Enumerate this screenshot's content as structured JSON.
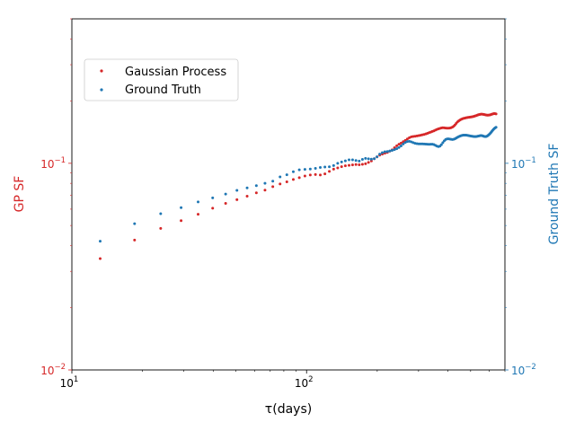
{
  "chart_data": {
    "type": "scatter",
    "xscale": "log",
    "yscale": "log",
    "xlabel": "τ(days)",
    "ylabel_left": "GP SF",
    "ylabel_right": "Ground Truth SF",
    "xlim": [
      10,
      700
    ],
    "ylim_left": [
      0.01,
      0.5
    ],
    "ylim_right": [
      0.01,
      0.5
    ],
    "x_ticks": [
      {
        "value": 10,
        "label_base": "10",
        "label_exp": "1"
      },
      {
        "value": 100,
        "label_base": "10",
        "label_exp": "2"
      }
    ],
    "y_ticks_left": [
      {
        "value": 0.01,
        "label_base": "10",
        "label_exp": "−2"
      },
      {
        "value": 0.1,
        "label_base": "10",
        "label_exp": "−1"
      }
    ],
    "y_ticks_right": [
      {
        "value": 0.01,
        "label_base": "10",
        "label_exp": "−2"
      },
      {
        "value": 0.1,
        "label_base": "10",
        "label_exp": "−1"
      }
    ],
    "colors": {
      "gp": "#d62728",
      "truth": "#1f77b4",
      "axis": "#000000"
    },
    "legend": {
      "placement": "upper-left",
      "entries": [
        {
          "name": "Gaussian Process",
          "color": "#d62728"
        },
        {
          "name": "Ground Truth",
          "color": "#1f77b4"
        }
      ]
    },
    "series": [
      {
        "name": "Gaussian Process",
        "axis": "left",
        "color": "#d62728",
        "points": [
          [
            13.2,
            0.0346
          ],
          [
            18.5,
            0.0425
          ],
          [
            23.9,
            0.0484
          ],
          [
            29.2,
            0.0528
          ],
          [
            34.5,
            0.0567
          ],
          [
            39.8,
            0.0606
          ],
          [
            45.2,
            0.064
          ],
          [
            50.5,
            0.0667
          ],
          [
            55.8,
            0.0693
          ],
          [
            61.1,
            0.072
          ],
          [
            66.5,
            0.0742
          ],
          [
            71.8,
            0.0771
          ],
          [
            77.1,
            0.0794
          ],
          [
            82.4,
            0.0813
          ],
          [
            87.8,
            0.0835
          ],
          [
            93.1,
            0.0852
          ],
          [
            98.4,
            0.0868
          ],
          [
            103.7,
            0.0878
          ],
          [
            109.1,
            0.0882
          ],
          [
            114.4,
            0.0878
          ],
          [
            119.7,
            0.0889
          ],
          [
            125.0,
            0.0914
          ],
          [
            130.4,
            0.0937
          ],
          [
            135.7,
            0.095
          ],
          [
            141.0,
            0.0963
          ],
          [
            146.3,
            0.0973
          ],
          [
            151.7,
            0.0978
          ],
          [
            157.0,
            0.0983
          ],
          [
            162.3,
            0.0986
          ],
          [
            167.6,
            0.0984
          ],
          [
            173.0,
            0.0989
          ],
          [
            178.3,
            0.0995
          ],
          [
            183.6,
            0.101
          ],
          [
            188.9,
            0.1027
          ],
          [
            194.3,
            0.1052
          ],
          [
            199.6,
            0.1074
          ],
          [
            204.9,
            0.1095
          ],
          [
            210.2,
            0.1108
          ],
          [
            215.6,
            0.1119
          ],
          [
            220.9,
            0.1129
          ],
          [
            226.2,
            0.1145
          ],
          [
            231.5,
            0.1162
          ],
          [
            236.9,
            0.1189
          ],
          [
            242.2,
            0.1215
          ],
          [
            247.5,
            0.1236
          ],
          [
            252.8,
            0.1253
          ],
          [
            258.2,
            0.1273
          ],
          [
            263.5,
            0.1291
          ],
          [
            268.8,
            0.1311
          ],
          [
            274.1,
            0.133
          ],
          [
            279.5,
            0.1343
          ],
          [
            284.8,
            0.1348
          ],
          [
            290.1,
            0.1351
          ],
          [
            295.4,
            0.1356
          ],
          [
            300.8,
            0.1362
          ],
          [
            306.1,
            0.1367
          ],
          [
            311.4,
            0.1373
          ],
          [
            316.7,
            0.1379
          ],
          [
            322.1,
            0.1387
          ],
          [
            327.4,
            0.1396
          ],
          [
            332.7,
            0.1406
          ],
          [
            338.0,
            0.1416
          ],
          [
            343.4,
            0.1426
          ],
          [
            348.7,
            0.1436
          ],
          [
            354.0,
            0.1447
          ],
          [
            359.3,
            0.1458
          ],
          [
            364.7,
            0.1468
          ],
          [
            370.0,
            0.1476
          ],
          [
            375.3,
            0.1482
          ],
          [
            380.6,
            0.1486
          ],
          [
            386.0,
            0.1484
          ],
          [
            391.3,
            0.1481
          ],
          [
            396.6,
            0.1479
          ],
          [
            401.9,
            0.1478
          ],
          [
            407.3,
            0.1481
          ],
          [
            412.6,
            0.1487
          ],
          [
            417.9,
            0.1495
          ],
          [
            423.2,
            0.151
          ],
          [
            428.6,
            0.1532
          ],
          [
            433.9,
            0.1558
          ],
          [
            439.2,
            0.1584
          ],
          [
            444.5,
            0.1603
          ],
          [
            449.9,
            0.1618
          ],
          [
            455.2,
            0.163
          ],
          [
            460.5,
            0.164
          ],
          [
            465.8,
            0.1648
          ],
          [
            471.2,
            0.1654
          ],
          [
            476.5,
            0.1659
          ],
          [
            481.8,
            0.1664
          ],
          [
            487.1,
            0.1667
          ],
          [
            492.5,
            0.167
          ],
          [
            497.8,
            0.1673
          ],
          [
            503.1,
            0.1676
          ],
          [
            508.4,
            0.168
          ],
          [
            513.8,
            0.1685
          ],
          [
            519.1,
            0.169
          ],
          [
            524.4,
            0.1696
          ],
          [
            529.7,
            0.1703
          ],
          [
            535.1,
            0.1711
          ],
          [
            540.4,
            0.1718
          ],
          [
            545.7,
            0.1723
          ],
          [
            551.0,
            0.1727
          ],
          [
            556.4,
            0.1729
          ],
          [
            561.7,
            0.1727
          ],
          [
            567.0,
            0.1724
          ],
          [
            572.3,
            0.172
          ],
          [
            577.7,
            0.1716
          ],
          [
            583.0,
            0.1712
          ],
          [
            588.3,
            0.171
          ],
          [
            593.6,
            0.1709
          ],
          [
            599.0,
            0.1711
          ],
          [
            604.3,
            0.1715
          ],
          [
            609.6,
            0.172
          ],
          [
            614.9,
            0.1726
          ],
          [
            620.3,
            0.1732
          ],
          [
            625.6,
            0.1737
          ],
          [
            630.9,
            0.1739
          ],
          [
            636.2,
            0.1738
          ],
          [
            641.6,
            0.1734
          ]
        ]
      },
      {
        "name": "Ground Truth",
        "axis": "right",
        "color": "#1f77b4",
        "points": [
          [
            13.2,
            0.042
          ],
          [
            18.5,
            0.051
          ],
          [
            23.9,
            0.057
          ],
          [
            29.2,
            0.061
          ],
          [
            34.5,
            0.065
          ],
          [
            39.8,
            0.068
          ],
          [
            45.2,
            0.071
          ],
          [
            50.5,
            0.074
          ],
          [
            55.8,
            0.076
          ],
          [
            61.1,
            0.078
          ],
          [
            66.5,
            0.08
          ],
          [
            71.8,
            0.082
          ],
          [
            77.1,
            0.086
          ],
          [
            82.4,
            0.088
          ],
          [
            87.8,
            0.091
          ],
          [
            93.1,
            0.093
          ],
          [
            98.4,
            0.0935
          ],
          [
            103.7,
            0.0938
          ],
          [
            109.1,
            0.0945
          ],
          [
            114.4,
            0.0955
          ],
          [
            119.7,
            0.096
          ],
          [
            125.0,
            0.0962
          ],
          [
            130.4,
            0.0975
          ],
          [
            135.7,
            0.1
          ],
          [
            141.0,
            0.1015
          ],
          [
            146.3,
            0.1028
          ],
          [
            151.7,
            0.104
          ],
          [
            157.0,
            0.104
          ],
          [
            162.3,
            0.1032
          ],
          [
            167.6,
            0.1025
          ],
          [
            173.0,
            0.1045
          ],
          [
            178.3,
            0.1057
          ],
          [
            183.6,
            0.1051
          ],
          [
            188.9,
            0.1047
          ],
          [
            194.3,
            0.1052
          ],
          [
            199.6,
            0.1075
          ],
          [
            204.9,
            0.1108
          ],
          [
            210.2,
            0.1126
          ],
          [
            215.6,
            0.1137
          ],
          [
            220.9,
            0.114
          ],
          [
            226.2,
            0.1148
          ],
          [
            231.5,
            0.1155
          ],
          [
            236.9,
            0.1165
          ],
          [
            242.2,
            0.1177
          ],
          [
            247.5,
            0.1193
          ],
          [
            252.8,
            0.1214
          ],
          [
            258.2,
            0.124
          ],
          [
            263.5,
            0.1262
          ],
          [
            268.8,
            0.1274
          ],
          [
            274.1,
            0.1277
          ],
          [
            279.5,
            0.127
          ],
          [
            284.8,
            0.1259
          ],
          [
            290.1,
            0.1249
          ],
          [
            295.4,
            0.1244
          ],
          [
            300.8,
            0.1242
          ],
          [
            306.1,
            0.1242
          ],
          [
            311.4,
            0.1241
          ],
          [
            316.7,
            0.124
          ],
          [
            322.1,
            0.1238
          ],
          [
            327.4,
            0.1236
          ],
          [
            332.7,
            0.1235
          ],
          [
            338.0,
            0.1236
          ],
          [
            343.4,
            0.1236
          ],
          [
            348.7,
            0.1232
          ],
          [
            354.0,
            0.1221
          ],
          [
            359.3,
            0.121
          ],
          [
            364.7,
            0.1205
          ],
          [
            370.0,
            0.1211
          ],
          [
            375.3,
            0.1231
          ],
          [
            380.6,
            0.1258
          ],
          [
            386.0,
            0.1284
          ],
          [
            391.3,
            0.1303
          ],
          [
            396.6,
            0.1312
          ],
          [
            401.9,
            0.1314
          ],
          [
            407.3,
            0.131
          ],
          [
            412.6,
            0.1306
          ],
          [
            417.9,
            0.1304
          ],
          [
            423.2,
            0.1307
          ],
          [
            428.6,
            0.1314
          ],
          [
            433.9,
            0.1324
          ],
          [
            439.2,
            0.1334
          ],
          [
            444.5,
            0.1344
          ],
          [
            449.9,
            0.1353
          ],
          [
            455.2,
            0.136
          ],
          [
            460.5,
            0.1365
          ],
          [
            465.8,
            0.1368
          ],
          [
            471.2,
            0.1369
          ],
          [
            476.5,
            0.1369
          ],
          [
            481.8,
            0.1367
          ],
          [
            487.1,
            0.1364
          ],
          [
            492.5,
            0.136
          ],
          [
            497.8,
            0.1357
          ],
          [
            503.1,
            0.1354
          ],
          [
            508.4,
            0.1351
          ],
          [
            513.8,
            0.1349
          ],
          [
            519.1,
            0.1347
          ],
          [
            524.4,
            0.1347
          ],
          [
            529.7,
            0.1348
          ],
          [
            535.1,
            0.1351
          ],
          [
            540.4,
            0.1355
          ],
          [
            545.7,
            0.1359
          ],
          [
            551.0,
            0.1362
          ],
          [
            556.4,
            0.1362
          ],
          [
            561.7,
            0.1359
          ],
          [
            567.0,
            0.1354
          ],
          [
            572.3,
            0.1349
          ],
          [
            577.7,
            0.1346
          ],
          [
            583.0,
            0.1348
          ],
          [
            588.3,
            0.1355
          ],
          [
            593.6,
            0.1365
          ],
          [
            599.0,
            0.1377
          ],
          [
            604.3,
            0.1391
          ],
          [
            609.6,
            0.1407
          ],
          [
            614.9,
            0.1424
          ],
          [
            620.3,
            0.1442
          ],
          [
            625.6,
            0.1458
          ],
          [
            630.9,
            0.1473
          ],
          [
            636.2,
            0.1485
          ],
          [
            641.6,
            0.1494
          ]
        ]
      }
    ]
  }
}
